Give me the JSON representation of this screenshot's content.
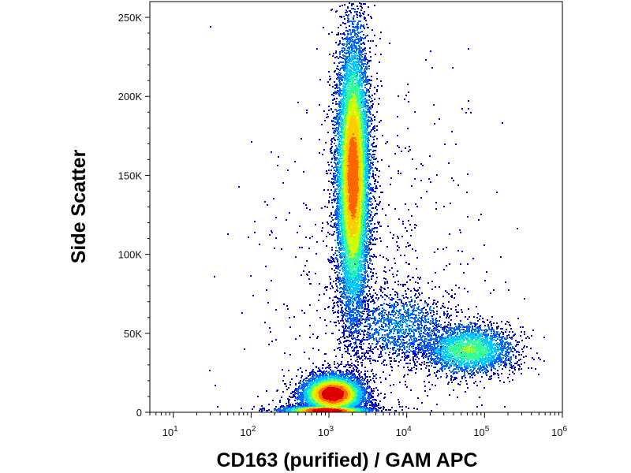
{
  "chart_data": {
    "type": "heatmap",
    "subtype": "flow-cytometry density dot plot",
    "xlabel": "CD163 (purified) / GAM APC",
    "ylabel": "Side Scatter",
    "x_scale": "log",
    "xlim": [
      5,
      1000000
    ],
    "ylim": [
      0,
      260000
    ],
    "grid": false,
    "legend": "none",
    "x_ticks": [
      {
        "value": 10,
        "base": "10",
        "exp": "1"
      },
      {
        "value": 100,
        "base": "10",
        "exp": "2"
      },
      {
        "value": 1000,
        "base": "10",
        "exp": "3"
      },
      {
        "value": 10000,
        "base": "10",
        "exp": "4"
      },
      {
        "value": 100000,
        "base": "10",
        "exp": "5"
      },
      {
        "value": 1000000,
        "base": "10",
        "exp": "6"
      }
    ],
    "y_ticks": [
      {
        "value": 0,
        "label": "0"
      },
      {
        "value": 50000,
        "label": "50K"
      },
      {
        "value": 100000,
        "label": "100K"
      },
      {
        "value": 150000,
        "label": "150K"
      },
      {
        "value": 200000,
        "label": "200K"
      },
      {
        "value": 250000,
        "label": "250K"
      }
    ],
    "colormap": [
      "#0000cc",
      "#0066ff",
      "#00ccff",
      "#33ff99",
      "#ccff00",
      "#ffcc00",
      "#ff6600",
      "#dd0000"
    ],
    "populations": [
      {
        "id": "granulocytes",
        "x_center": 2000,
        "y_center": 150000,
        "x_spread_decades": 0.11,
        "y_spread": 45000,
        "events": 10000,
        "peak_density": 0.8
      },
      {
        "id": "lymphocytes",
        "x_center": 1100,
        "y_center": 12000,
        "x_spread_decades": 0.2,
        "y_spread": 6000,
        "events": 6000,
        "peak_density": 1.0
      },
      {
        "id": "debris",
        "x_center": 900,
        "y_center": 1500,
        "x_spread_decades": 0.28,
        "y_spread": 1500,
        "events": 3000,
        "peak_density": 1.0
      },
      {
        "id": "cd163-positive-monocytes",
        "x_center": 60000,
        "y_center": 40000,
        "x_spread_decades": 0.3,
        "y_spread": 8000,
        "events": 2500,
        "peak_density": 0.45
      },
      {
        "id": "bridge",
        "x_center": 8000,
        "y_center": 55000,
        "x_spread_decades": 0.35,
        "y_spread": 12000,
        "events": 1200,
        "peak_density": 0.2
      },
      {
        "id": "scattered",
        "x_center": 3000,
        "y_center": 90000,
        "x_spread_decades": 0.7,
        "y_spread": 60000,
        "events": 700,
        "peak_density": 0.05
      }
    ]
  }
}
